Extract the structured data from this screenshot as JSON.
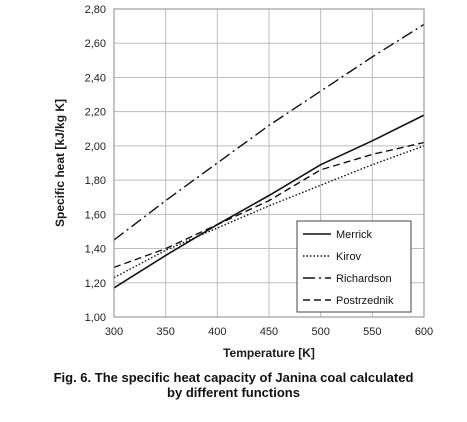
{
  "chart_data": {
    "type": "line",
    "xlabel": "Temperature [K]",
    "ylabel": "Specific heat [kJ/kg K]",
    "xlim": [
      300,
      600
    ],
    "ylim": [
      1.0,
      2.8
    ],
    "x_ticks": [
      300,
      350,
      400,
      450,
      500,
      550,
      600
    ],
    "x_tick_labels": [
      "300",
      "350",
      "400",
      "450",
      "500",
      "550",
      "600"
    ],
    "y_ticks": [
      1.0,
      1.2,
      1.4,
      1.6,
      1.8,
      2.0,
      2.2,
      2.4,
      2.6,
      2.8
    ],
    "y_tick_labels": [
      "1,00",
      "1,20",
      "1,40",
      "1,60",
      "1,80",
      "2,00",
      "2,20",
      "2,40",
      "2,60",
      "2,80"
    ],
    "grid": true,
    "legend_position": "bottom-right",
    "series": [
      {
        "name": "Merrick",
        "style": "solid",
        "x": [
          300,
          350,
          400,
          450,
          500,
          550,
          600
        ],
        "y": [
          1.17,
          1.36,
          1.54,
          1.71,
          1.89,
          2.03,
          2.18
        ]
      },
      {
        "name": "Kirov",
        "style": "dotted",
        "x": [
          300,
          350,
          400,
          450,
          500,
          550,
          600
        ],
        "y": [
          1.23,
          1.39,
          1.52,
          1.65,
          1.77,
          1.89,
          2.0
        ]
      },
      {
        "name": "Richardson",
        "style": "dashdot",
        "x": [
          300,
          350,
          400,
          450,
          500,
          550,
          600
        ],
        "y": [
          1.45,
          1.68,
          1.9,
          2.12,
          2.32,
          2.52,
          2.71
        ]
      },
      {
        "name": "Postrzednik",
        "style": "dashed",
        "x": [
          300,
          350,
          400,
          450,
          500,
          550,
          600
        ],
        "y": [
          1.29,
          1.4,
          1.54,
          1.68,
          1.86,
          1.95,
          2.02
        ]
      }
    ]
  },
  "caption": {
    "line1": "Fig. 6. The specific heat capacity of Janina coal calculated",
    "line2": "by different functions"
  }
}
